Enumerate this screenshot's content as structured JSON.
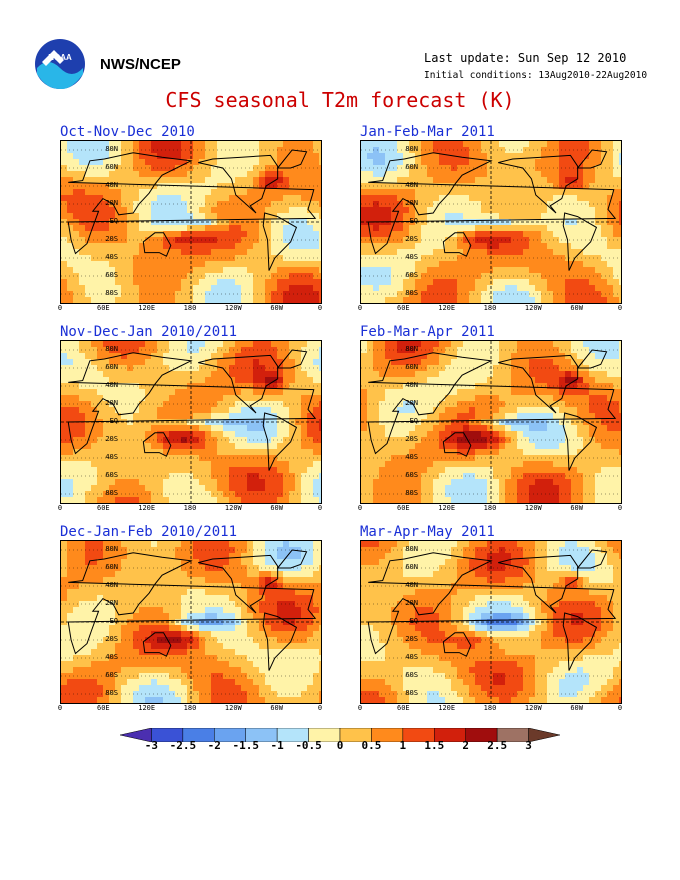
{
  "header": {
    "org": "NWS/NCEP",
    "last_update": "Last update: Sun Sep 12 2010",
    "initial_conditions": "Initial conditions: 13Aug2010-22Aug2010",
    "title": "CFS seasonal T2m forecast (K)"
  },
  "panels": [
    {
      "title": "Oct-Nov-Dec 2010"
    },
    {
      "title": "Jan-Feb-Mar 2011"
    },
    {
      "title": "Nov-Dec-Jan 2010/2011"
    },
    {
      "title": "Feb-Mar-Apr 2011"
    },
    {
      "title": "Dec-Jan-Feb 2010/2011"
    },
    {
      "title": "Mar-Apr-May 2011"
    }
  ],
  "lat_labels": [
    "80N",
    "60N",
    "40N",
    "20N",
    "EQ",
    "20S",
    "40S",
    "60S",
    "80S"
  ],
  "lon_labels": [
    "0",
    "60E",
    "120E",
    "180",
    "120W",
    "60W",
    "0"
  ],
  "colorbar": {
    "labels": [
      "-3",
      "-2.5",
      "-2",
      "-1.5",
      "-1",
      "-0.5",
      "0",
      "0.5",
      "1",
      "1.5",
      "2",
      "2.5",
      "3"
    ],
    "colors": [
      "#4b2fb0",
      "#3a52d6",
      "#4a7fe6",
      "#6aa3f0",
      "#8cc2f6",
      "#b4e4fa",
      "#fff3a8",
      "#ffc24a",
      "#ff8a1c",
      "#f24a12",
      "#d2200c",
      "#a00d0d",
      "#9e7264",
      "#6b3a2a"
    ]
  },
  "map": {
    "land_color": "#000000",
    "grid_color": "#000000"
  }
}
